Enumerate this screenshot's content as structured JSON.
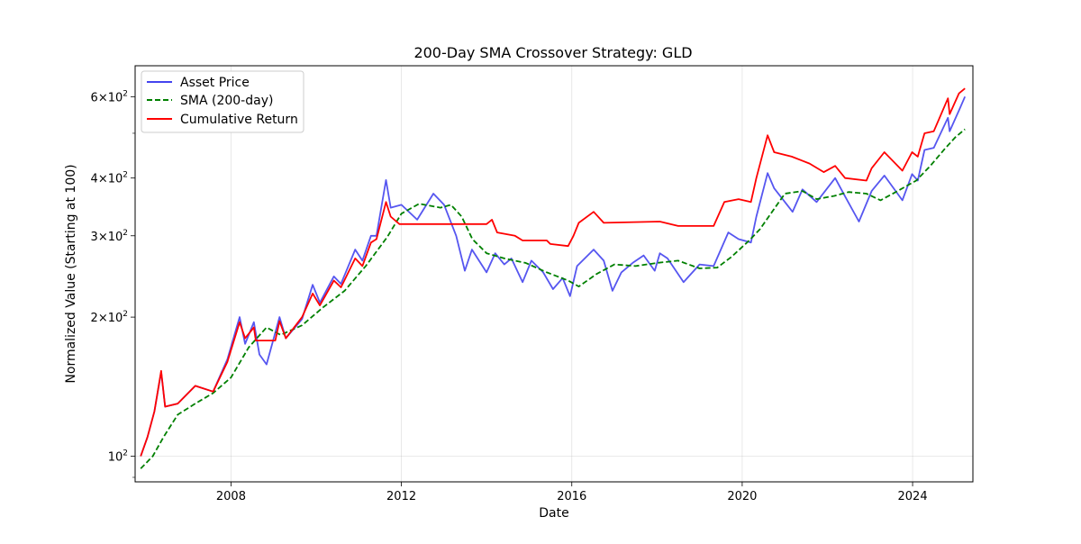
{
  "chart_data": {
    "type": "line",
    "title": "200-Day SMA Crossover Strategy: GLD",
    "xlabel": "Date",
    "ylabel": "Normalized Value (Starting at 100)",
    "x_axis": {
      "type": "date",
      "range": [
        "2005-10-01",
        "2025-06-01"
      ],
      "ticks": [
        "2008",
        "2012",
        "2016",
        "2020",
        "2024"
      ]
    },
    "y_axis": {
      "scale": "log",
      "range": [
        88,
        700
      ],
      "ticks": [
        100,
        200,
        300,
        400,
        600
      ],
      "tick_labels": [
        "10^2",
        "2×10^2",
        "3×10^2",
        "4×10^2",
        "6×10^2"
      ]
    },
    "grid": true,
    "legend": {
      "placement": "upper-left"
    },
    "series": [
      {
        "name": "Asset Price",
        "color": "#4444ee",
        "style": "solid",
        "points": [
          [
            "2005-11-18",
            100
          ],
          [
            "2006-01-15",
            110
          ],
          [
            "2006-03-15",
            125
          ],
          [
            "2006-05-12",
            152
          ],
          [
            "2006-06-15",
            128
          ],
          [
            "2006-10-01",
            130
          ],
          [
            "2007-03-01",
            142
          ],
          [
            "2007-08-01",
            138
          ],
          [
            "2007-12-01",
            162
          ],
          [
            "2008-03-15",
            200
          ],
          [
            "2008-05-01",
            175
          ],
          [
            "2008-07-15",
            195
          ],
          [
            "2008-09-01",
            166
          ],
          [
            "2008-11-01",
            158
          ],
          [
            "2009-02-20",
            200
          ],
          [
            "2009-04-15",
            180
          ],
          [
            "2009-09-01",
            198
          ],
          [
            "2009-12-01",
            235
          ],
          [
            "2010-02-01",
            215
          ],
          [
            "2010-06-01",
            245
          ],
          [
            "2010-08-01",
            236
          ],
          [
            "2010-12-01",
            280
          ],
          [
            "2011-02-01",
            265
          ],
          [
            "2011-04-15",
            300
          ],
          [
            "2011-06-01",
            300
          ],
          [
            "2011-08-22",
            396
          ],
          [
            "2011-10-01",
            345
          ],
          [
            "2012-01-01",
            350
          ],
          [
            "2012-05-15",
            325
          ],
          [
            "2012-10-01",
            370
          ],
          [
            "2013-01-01",
            350
          ],
          [
            "2013-04-15",
            300
          ],
          [
            "2013-06-28",
            252
          ],
          [
            "2013-08-28",
            280
          ],
          [
            "2013-12-31",
            250
          ],
          [
            "2014-03-15",
            275
          ],
          [
            "2014-06-01",
            260
          ],
          [
            "2014-08-01",
            268
          ],
          [
            "2014-11-05",
            238
          ],
          [
            "2015-01-20",
            265
          ],
          [
            "2015-05-01",
            250
          ],
          [
            "2015-07-24",
            230
          ],
          [
            "2015-10-15",
            243
          ],
          [
            "2015-12-17",
            222
          ],
          [
            "2016-02-15",
            258
          ],
          [
            "2016-07-06",
            280
          ],
          [
            "2016-10-01",
            265
          ],
          [
            "2016-12-15",
            228
          ],
          [
            "2017-03-01",
            250
          ],
          [
            "2017-06-06",
            262
          ],
          [
            "2017-09-08",
            272
          ],
          [
            "2017-12-12",
            252
          ],
          [
            "2018-01-25",
            275
          ],
          [
            "2018-04-01",
            268
          ],
          [
            "2018-08-16",
            238
          ],
          [
            "2019-01-01",
            260
          ],
          [
            "2019-05-01",
            258
          ],
          [
            "2019-09-04",
            305
          ],
          [
            "2019-12-01",
            295
          ],
          [
            "2020-03-16",
            290
          ],
          [
            "2020-05-01",
            330
          ],
          [
            "2020-08-06",
            410
          ],
          [
            "2020-10-01",
            380
          ],
          [
            "2021-03-08",
            338
          ],
          [
            "2021-06-01",
            378
          ],
          [
            "2021-09-30",
            355
          ],
          [
            "2022-03-08",
            400
          ],
          [
            "2022-06-01",
            365
          ],
          [
            "2022-09-28",
            322
          ],
          [
            "2023-01-15",
            375
          ],
          [
            "2023-05-04",
            405
          ],
          [
            "2023-10-05",
            358
          ],
          [
            "2023-12-28",
            408
          ],
          [
            "2024-02-14",
            395
          ],
          [
            "2024-04-12",
            460
          ],
          [
            "2024-07-01",
            465
          ],
          [
            "2024-10-30",
            540
          ],
          [
            "2024-11-14",
            505
          ],
          [
            "2025-02-01",
            560
          ],
          [
            "2025-03-25",
            600
          ]
        ]
      },
      {
        "name": "SMA (200-day)",
        "color": "#008000",
        "style": "dashed",
        "points": [
          [
            "2005-11-18",
            94
          ],
          [
            "2006-03-01",
            100
          ],
          [
            "2006-06-01",
            110
          ],
          [
            "2006-10-01",
            123
          ],
          [
            "2007-03-01",
            130
          ],
          [
            "2007-08-01",
            137
          ],
          [
            "2008-01-01",
            148
          ],
          [
            "2008-06-01",
            172
          ],
          [
            "2008-11-01",
            190
          ],
          [
            "2009-03-01",
            183
          ],
          [
            "2009-09-01",
            192
          ],
          [
            "2010-03-01",
            210
          ],
          [
            "2010-09-01",
            228
          ],
          [
            "2011-03-01",
            258
          ],
          [
            "2011-09-01",
            298
          ],
          [
            "2012-01-01",
            335
          ],
          [
            "2012-06-01",
            352
          ],
          [
            "2012-12-01",
            345
          ],
          [
            "2013-03-01",
            350
          ],
          [
            "2013-06-01",
            330
          ],
          [
            "2013-09-01",
            295
          ],
          [
            "2014-01-01",
            275
          ],
          [
            "2014-06-01",
            268
          ],
          [
            "2014-12-01",
            262
          ],
          [
            "2015-06-01",
            250
          ],
          [
            "2015-12-01",
            240
          ],
          [
            "2016-03-01",
            233
          ],
          [
            "2016-08-01",
            248
          ],
          [
            "2017-01-01",
            260
          ],
          [
            "2017-07-01",
            258
          ],
          [
            "2018-01-01",
            262
          ],
          [
            "2018-07-01",
            265
          ],
          [
            "2019-01-01",
            255
          ],
          [
            "2019-06-01",
            256
          ],
          [
            "2019-10-01",
            270
          ],
          [
            "2020-03-01",
            293
          ],
          [
            "2020-06-01",
            310
          ],
          [
            "2020-10-01",
            343
          ],
          [
            "2021-01-01",
            370
          ],
          [
            "2021-06-01",
            375
          ],
          [
            "2021-10-01",
            360
          ],
          [
            "2022-03-01",
            366
          ],
          [
            "2022-07-01",
            373
          ],
          [
            "2022-12-01",
            370
          ],
          [
            "2023-04-01",
            358
          ],
          [
            "2023-08-01",
            372
          ],
          [
            "2023-12-01",
            387
          ],
          [
            "2024-02-01",
            395
          ],
          [
            "2024-06-01",
            425
          ],
          [
            "2024-10-01",
            462
          ],
          [
            "2025-01-01",
            490
          ],
          [
            "2025-03-25",
            510
          ]
        ]
      },
      {
        "name": "Cumulative Return",
        "color": "#ff0000",
        "style": "solid",
        "points": [
          [
            "2005-11-18",
            100
          ],
          [
            "2006-01-15",
            110
          ],
          [
            "2006-03-15",
            125
          ],
          [
            "2006-05-12",
            153
          ],
          [
            "2006-06-15",
            128
          ],
          [
            "2006-10-01",
            130
          ],
          [
            "2007-03-01",
            142
          ],
          [
            "2007-08-01",
            138
          ],
          [
            "2007-12-01",
            160
          ],
          [
            "2008-03-15",
            195
          ],
          [
            "2008-05-01",
            180
          ],
          [
            "2008-07-15",
            190
          ],
          [
            "2008-08-01",
            178
          ],
          [
            "2009-01-15",
            178
          ],
          [
            "2009-02-20",
            196
          ],
          [
            "2009-04-15",
            180
          ],
          [
            "2009-09-01",
            200
          ],
          [
            "2009-12-01",
            225
          ],
          [
            "2010-02-01",
            212
          ],
          [
            "2010-06-01",
            240
          ],
          [
            "2010-08-01",
            232
          ],
          [
            "2010-12-01",
            268
          ],
          [
            "2011-02-01",
            258
          ],
          [
            "2011-04-15",
            290
          ],
          [
            "2011-06-01",
            295
          ],
          [
            "2011-08-22",
            355
          ],
          [
            "2011-10-01",
            330
          ],
          [
            "2011-12-15",
            318
          ],
          [
            "2013-12-31",
            318
          ],
          [
            "2014-02-15",
            325
          ],
          [
            "2014-04-01",
            305
          ],
          [
            "2014-09-01",
            300
          ],
          [
            "2014-11-05",
            293
          ],
          [
            "2015-06-01",
            293
          ],
          [
            "2015-07-01",
            288
          ],
          [
            "2015-12-01",
            285
          ],
          [
            "2016-01-15",
            300
          ],
          [
            "2016-03-01",
            320
          ],
          [
            "2016-07-06",
            338
          ],
          [
            "2016-10-01",
            320
          ],
          [
            "2018-01-25",
            322
          ],
          [
            "2018-07-01",
            315
          ],
          [
            "2019-05-01",
            315
          ],
          [
            "2019-08-01",
            355
          ],
          [
            "2019-12-01",
            360
          ],
          [
            "2020-03-16",
            355
          ],
          [
            "2020-05-01",
            400
          ],
          [
            "2020-08-06",
            495
          ],
          [
            "2020-10-01",
            455
          ],
          [
            "2021-03-01",
            445
          ],
          [
            "2021-08-01",
            430
          ],
          [
            "2021-12-01",
            412
          ],
          [
            "2022-03-08",
            425
          ],
          [
            "2022-06-01",
            400
          ],
          [
            "2022-12-01",
            395
          ],
          [
            "2023-01-15",
            420
          ],
          [
            "2023-05-04",
            455
          ],
          [
            "2023-10-05",
            415
          ],
          [
            "2023-12-28",
            455
          ],
          [
            "2024-02-14",
            445
          ],
          [
            "2024-04-12",
            500
          ],
          [
            "2024-07-01",
            505
          ],
          [
            "2024-10-30",
            595
          ],
          [
            "2024-11-14",
            550
          ],
          [
            "2025-02-01",
            610
          ],
          [
            "2025-03-25",
            625
          ]
        ]
      }
    ]
  }
}
